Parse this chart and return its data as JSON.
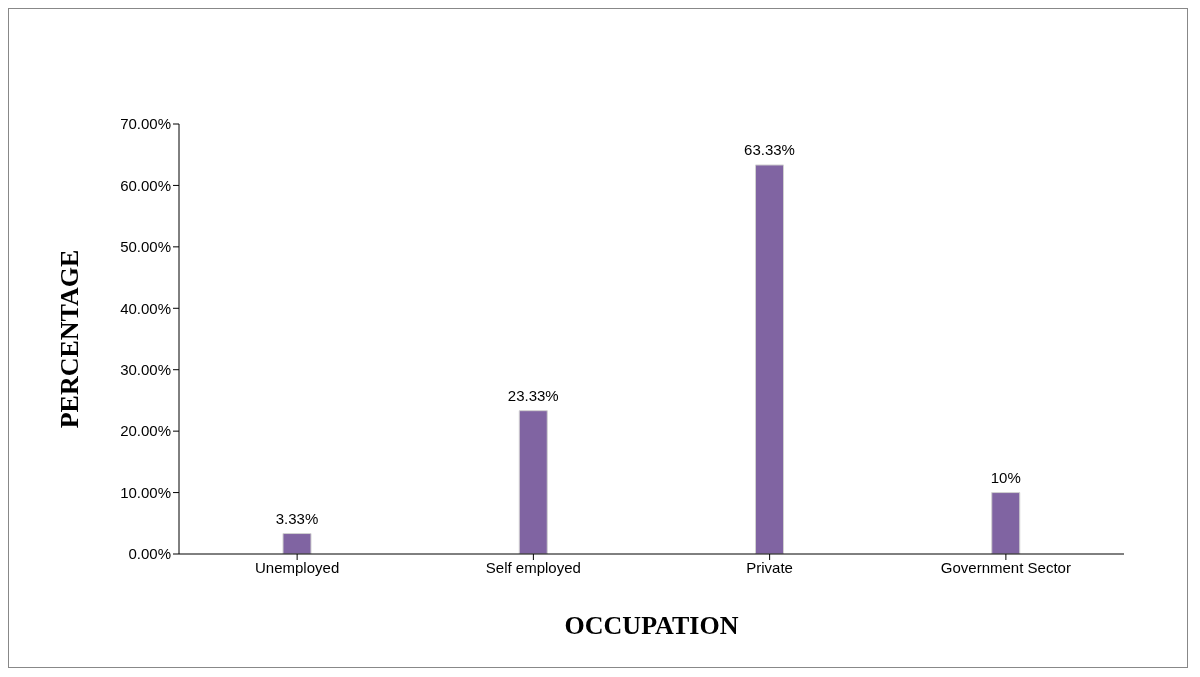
{
  "chart_data": {
    "type": "bar",
    "xlabel": "OCCUPATION",
    "ylabel": "PERCENTAGE",
    "categories": [
      "Unemployed",
      "Self employed",
      "Private",
      "Government  Sector"
    ],
    "values": [
      3.33,
      23.33,
      63.33,
      10
    ],
    "value_labels": [
      "3.33%",
      "23.33%",
      "63.33%",
      "10%"
    ],
    "color": "#8064a2",
    "ylim": [
      0,
      70
    ],
    "yticks": [
      {
        "value": 0,
        "label": "0.00%"
      },
      {
        "value": 10,
        "label": "10.00%"
      },
      {
        "value": 20,
        "label": "20.00%"
      },
      {
        "value": 30,
        "label": "30.00%"
      },
      {
        "value": 40,
        "label": "40.00%"
      },
      {
        "value": 50,
        "label": "50.00%"
      },
      {
        "value": 60,
        "label": "60.00%"
      },
      {
        "value": 70,
        "label": "70.00%"
      }
    ],
    "grid": false,
    "legend": false
  }
}
